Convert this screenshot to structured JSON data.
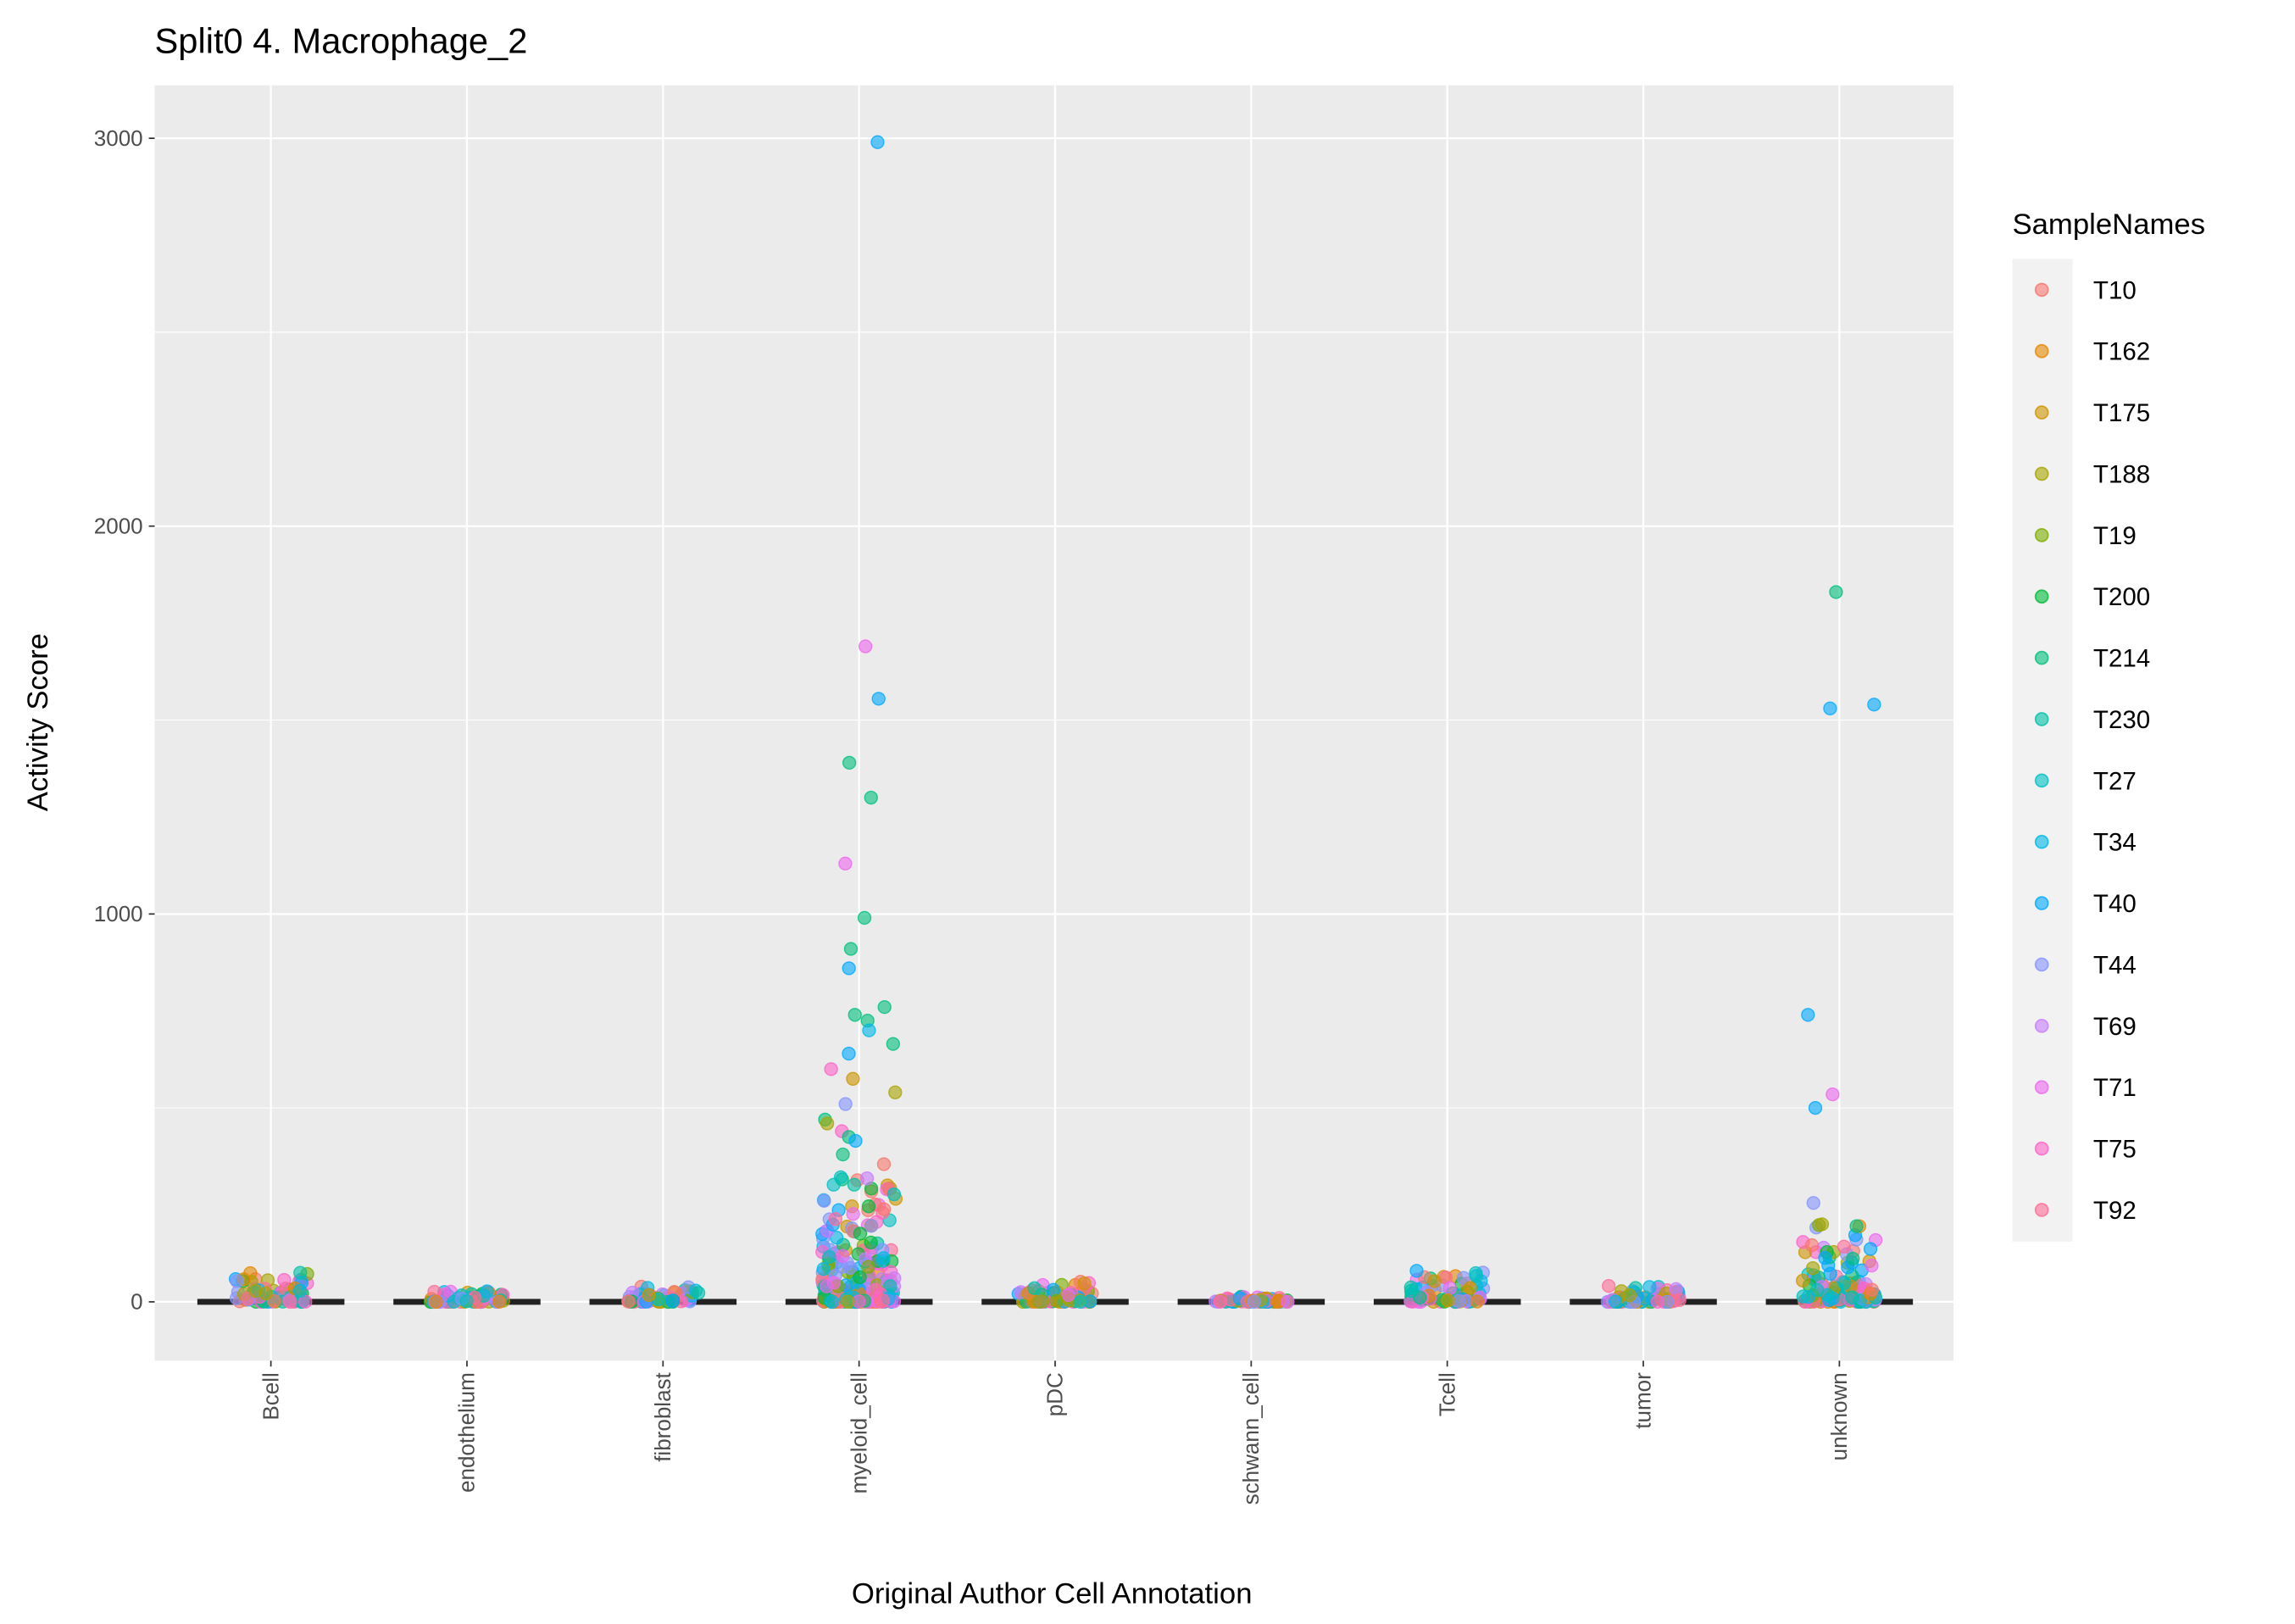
{
  "chart_data": {
    "type": "scatter",
    "title": "Split0 4. Macrophage_2",
    "xlabel": "Original Author Cell Annotation",
    "ylabel": "Activity Score",
    "ylim": [
      -150,
      3150
    ],
    "yticks": [
      0,
      1000,
      2000,
      3000
    ],
    "grid": true,
    "legend_title": "SampleNames",
    "legend_position": "right",
    "categories": [
      "Bcell",
      "endothelium",
      "fibroblast",
      "myeloid_cell",
      "pDC",
      "schwann_cell",
      "Tcell",
      "tumor",
      "unknown"
    ],
    "series": [
      {
        "name": "T10",
        "color": "#F8766D"
      },
      {
        "name": "T162",
        "color": "#E58700"
      },
      {
        "name": "T175",
        "color": "#CE9500"
      },
      {
        "name": "T188",
        "color": "#A9A400"
      },
      {
        "name": "T19",
        "color": "#7CAE00"
      },
      {
        "name": "T200",
        "color": "#00BA38"
      },
      {
        "name": "T214",
        "color": "#00BF7D"
      },
      {
        "name": "T230",
        "color": "#00C1A7"
      },
      {
        "name": "T27",
        "color": "#00BFC4"
      },
      {
        "name": "T34",
        "color": "#00B8E7"
      },
      {
        "name": "T40",
        "color": "#00A9FF"
      },
      {
        "name": "T44",
        "color": "#8494FF"
      },
      {
        "name": "T69",
        "color": "#C77CFF"
      },
      {
        "name": "T71",
        "color": "#ED68ED"
      },
      {
        "name": "T75",
        "color": "#FF61C9"
      },
      {
        "name": "T92",
        "color": "#FF6A98"
      }
    ],
    "typical_max": {
      "Bcell": 75,
      "endothelium": 30,
      "fibroblast": 40,
      "myeloid_cell": 330,
      "pDC": 55,
      "schwann_cell": 15,
      "Tcell": 80,
      "tumor": 45,
      "unknown": 200
    },
    "outliers": [
      {
        "category": "myeloid_cell",
        "sample": "T40",
        "value": 2990
      },
      {
        "category": "myeloid_cell",
        "sample": "T71",
        "value": 1690
      },
      {
        "category": "myeloid_cell",
        "sample": "T40",
        "value": 1555
      },
      {
        "category": "myeloid_cell",
        "sample": "T214",
        "value": 1390
      },
      {
        "category": "myeloid_cell",
        "sample": "T214",
        "value": 1300
      },
      {
        "category": "myeloid_cell",
        "sample": "T71",
        "value": 1130
      },
      {
        "category": "myeloid_cell",
        "sample": "T214",
        "value": 990
      },
      {
        "category": "myeloid_cell",
        "sample": "T214",
        "value": 910
      },
      {
        "category": "myeloid_cell",
        "sample": "T40",
        "value": 860
      },
      {
        "category": "myeloid_cell",
        "sample": "T214",
        "value": 760
      },
      {
        "category": "myeloid_cell",
        "sample": "T214",
        "value": 740
      },
      {
        "category": "myeloid_cell",
        "sample": "T214",
        "value": 725
      },
      {
        "category": "myeloid_cell",
        "sample": "T34",
        "value": 700
      },
      {
        "category": "myeloid_cell",
        "sample": "T214",
        "value": 665
      },
      {
        "category": "myeloid_cell",
        "sample": "T40",
        "value": 640
      },
      {
        "category": "myeloid_cell",
        "sample": "T75",
        "value": 600
      },
      {
        "category": "myeloid_cell",
        "sample": "T175",
        "value": 575
      },
      {
        "category": "myeloid_cell",
        "sample": "T188",
        "value": 540
      },
      {
        "category": "myeloid_cell",
        "sample": "T44",
        "value": 510
      },
      {
        "category": "myeloid_cell",
        "sample": "T214",
        "value": 470
      },
      {
        "category": "myeloid_cell",
        "sample": "T188",
        "value": 460
      },
      {
        "category": "myeloid_cell",
        "sample": "T75",
        "value": 440
      },
      {
        "category": "myeloid_cell",
        "sample": "T214",
        "value": 425
      },
      {
        "category": "myeloid_cell",
        "sample": "T40",
        "value": 415
      },
      {
        "category": "myeloid_cell",
        "sample": "T214",
        "value": 380
      },
      {
        "category": "myeloid_cell",
        "sample": "T10",
        "value": 355
      },
      {
        "category": "unknown",
        "sample": "T214",
        "value": 1830
      },
      {
        "category": "unknown",
        "sample": "T40",
        "value": 1540
      },
      {
        "category": "unknown",
        "sample": "T40",
        "value": 1530
      },
      {
        "category": "unknown",
        "sample": "T40",
        "value": 740
      },
      {
        "category": "unknown",
        "sample": "T71",
        "value": 535
      },
      {
        "category": "unknown",
        "sample": "T40",
        "value": 500
      },
      {
        "category": "unknown",
        "sample": "T44",
        "value": 255
      },
      {
        "category": "unknown",
        "sample": "T188",
        "value": 200
      },
      {
        "category": "unknown",
        "sample": "T214",
        "value": 195
      },
      {
        "category": "Bcell",
        "sample": "T230",
        "value": 75
      },
      {
        "category": "Tcell",
        "sample": "T40",
        "value": 80
      }
    ]
  }
}
